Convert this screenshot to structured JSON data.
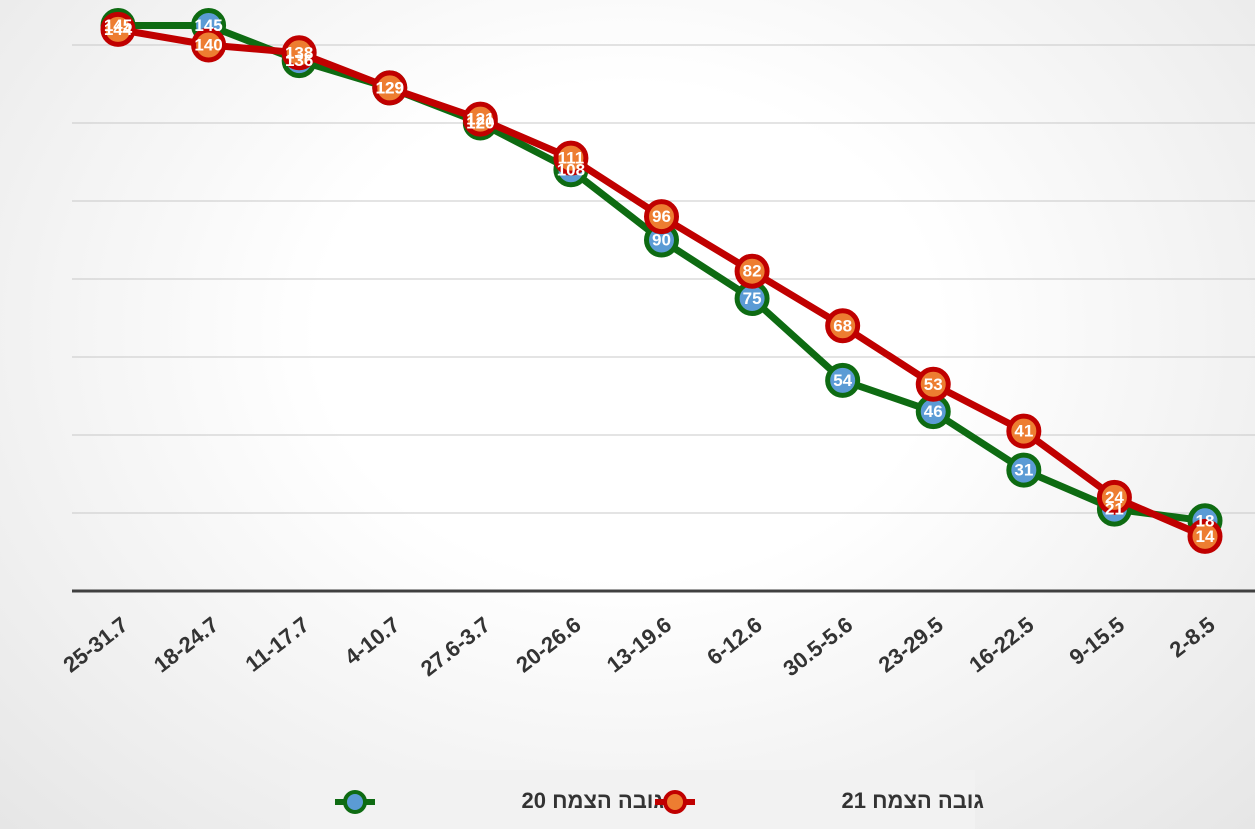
{
  "chart_data": {
    "type": "line",
    "categories": [
      "25-31.7",
      "18-24.7",
      "11-17.7",
      "4-10.7",
      "27.6-3.7",
      "20-26.6",
      "13-19.6",
      "6-12.6",
      "30.5-5.6",
      "23-29.5",
      "16-22.5",
      "9-15.5",
      "2-8.5"
    ],
    "series": [
      {
        "name": "גובה הצמח 20",
        "color": "#0e6b12",
        "marker_color": "#5b9bd5",
        "values": [
          145,
          145,
          136,
          129,
          120,
          108,
          90,
          75,
          54,
          46,
          31,
          21,
          18
        ]
      },
      {
        "name": "גובה הצמח 21",
        "color": "#c00000",
        "marker_color": "#ed7d31",
        "values": [
          144,
          140,
          138,
          129,
          121,
          111,
          96,
          82,
          68,
          53,
          41,
          24,
          14
        ]
      }
    ],
    "ylim": [
      0,
      150
    ],
    "yticks": [
      0,
      20,
      40,
      60,
      80,
      100,
      120,
      140
    ],
    "grid": true,
    "legend": "bottom"
  }
}
